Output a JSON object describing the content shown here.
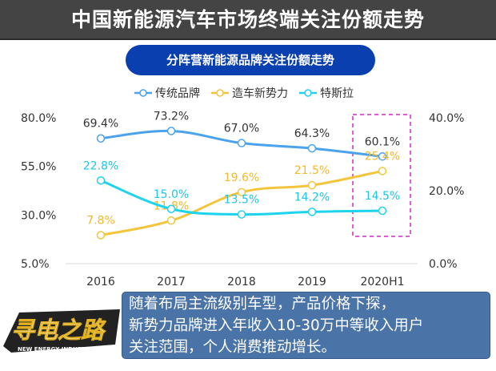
{
  "header": {
    "title": "中国新能源汽车市场终端关注份额走势"
  },
  "note": {
    "text": "随着布局主流级别车型，产品价格下探，\n新势力品牌进入年收入10-30万中等收入用户\n关注范围，个人消费推动增长。"
  },
  "logo": {
    "text": "寻电之路",
    "subtext": "NEW ENERGY INDUSTRY 第一季"
  },
  "chart_data": {
    "type": "line",
    "title": "分阵营新能源品牌关注份额走势",
    "categories": [
      "2016",
      "2017",
      "2018",
      "2019",
      "2020H1"
    ],
    "left_axis": {
      "ticks": [
        "80.0%",
        "55.0%",
        "30.0%",
        "5.0%"
      ],
      "range": [
        5,
        80
      ]
    },
    "right_axis": {
      "ticks": [
        "40.0%",
        "20.0%",
        "0.0%"
      ],
      "range": [
        0,
        40
      ]
    },
    "legend_position": "top",
    "grid": false,
    "highlight": "2020H1",
    "highlight_color": "#d726c8",
    "series": [
      {
        "name": "传统品牌",
        "axis": "left",
        "color": "#4aa3ec",
        "values": [
          69.4,
          73.2,
          67.0,
          64.3,
          60.1
        ],
        "labels": [
          "69.4%",
          "73.2%",
          "67.0%",
          "64.3%",
          "60.1%"
        ],
        "label_color": "#333333"
      },
      {
        "name": "造车新势力",
        "axis": "right",
        "color": "#f2c53d",
        "values": [
          7.8,
          11.8,
          19.6,
          21.5,
          25.4
        ],
        "labels": [
          "7.8%",
          "11.8%",
          "19.6%",
          "21.5%",
          "25.4%"
        ],
        "label_color": "#f2b92a"
      },
      {
        "name": "特斯拉",
        "axis": "right",
        "color": "#1ed3ec",
        "values": [
          22.8,
          15.0,
          13.5,
          14.2,
          14.5
        ],
        "labels": [
          "22.8%",
          "15.0%",
          "13.5%",
          "14.2%",
          "14.5%"
        ],
        "label_color": "#1ec6e6"
      }
    ]
  }
}
